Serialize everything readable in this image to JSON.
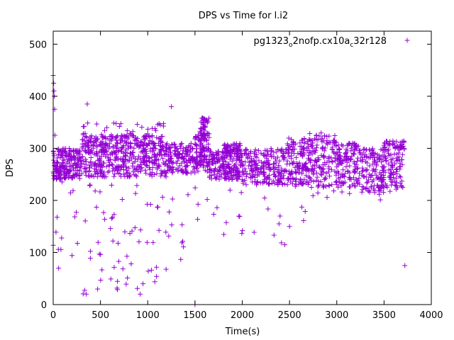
{
  "chart_data": {
    "type": "scatter",
    "title": "DPS vs Time for l.i2",
    "xlabel": "Time(s)",
    "ylabel": "DPS",
    "xlim": [
      0,
      4000
    ],
    "ylim": [
      0,
      525
    ],
    "x_ticks": [
      0,
      500,
      1000,
      1500,
      2000,
      2500,
      3000,
      3500,
      4000
    ],
    "y_ticks": [
      0,
      100,
      200,
      300,
      400,
      500
    ],
    "grid": false,
    "legend_position": "top-right",
    "series": [
      {
        "name": "pg1323_o2nofp.cx10a_c32r128",
        "legend": {
          "base1": "pg1323",
          "sub1": "o",
          "base2": "2nofp.cx10a",
          "sub2": "c",
          "base3": "32r128"
        },
        "color": "#9400d3",
        "marker": "plus",
        "notable_points": [
          [
            0,
            440
          ],
          [
            5,
            425
          ],
          [
            8,
            410
          ],
          [
            12,
            400
          ],
          [
            15,
            375
          ],
          [
            18,
            325
          ],
          [
            3720,
            75
          ],
          [
            1500,
            0
          ],
          [
            920,
            20
          ],
          [
            950,
            40
          ],
          [
            350,
            20
          ],
          [
            470,
            30
          ],
          [
            1590,
            350
          ],
          [
            1620,
            355
          ],
          [
            1600,
            340
          ],
          [
            1250,
            380
          ],
          [
            360,
            385
          ],
          [
            1990,
            215
          ],
          [
            2150,
            230
          ],
          [
            2400,
            170
          ],
          [
            2450,
            115
          ],
          [
            2500,
            150
          ]
        ]
      }
    ]
  }
}
